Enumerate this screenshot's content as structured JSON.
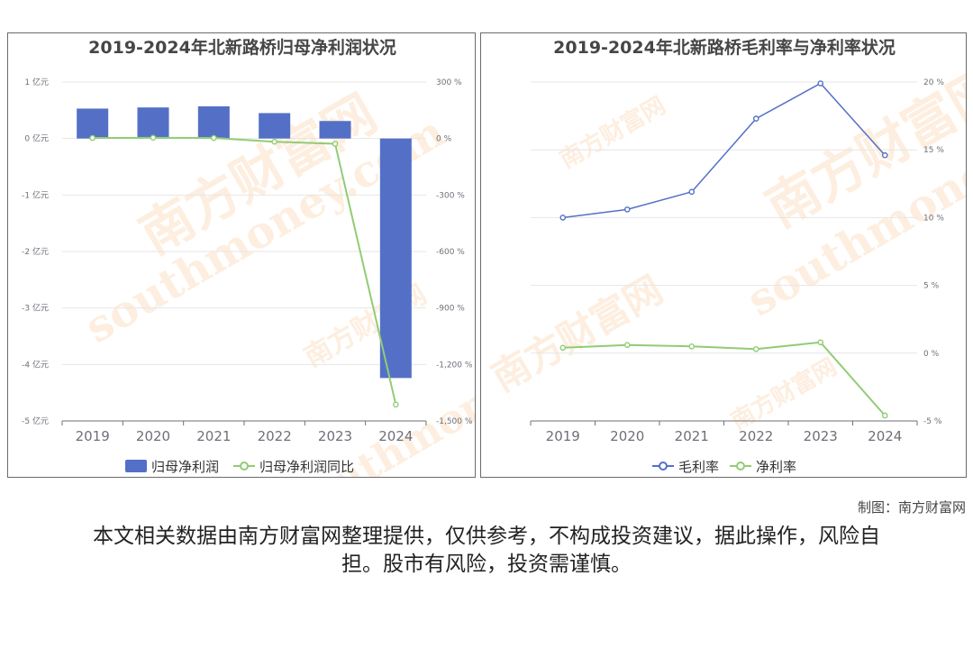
{
  "chart_data": [
    {
      "type": "bar",
      "title": "2019-2024年北新路桥归母净利润状况",
      "categories": [
        "2019",
        "2020",
        "2021",
        "2022",
        "2023",
        "2024"
      ],
      "y_left": {
        "ticks": [
          "1 亿元",
          "0 亿元",
          "-1 亿元",
          "-2 亿元",
          "-3 亿元",
          "-4 亿元",
          "-5 亿元"
        ],
        "range": [
          -5,
          1
        ]
      },
      "y_right": {
        "ticks": [
          "300 %",
          "0 %",
          "-300 %",
          "-600 %",
          "-900 %",
          "-1,200 %",
          "-1,500 %"
        ],
        "range": [
          -1500,
          300
        ]
      },
      "series": [
        {
          "name": "归母净利润",
          "type": "bar",
          "axis": "left",
          "color": "#5470c6",
          "values": [
            0.53,
            0.55,
            0.57,
            0.45,
            0.31,
            -4.24
          ]
        },
        {
          "name": "归母净利润同比",
          "type": "line",
          "axis": "right",
          "color": "#91cc75",
          "values": [
            3,
            4,
            3,
            -17,
            -28,
            -1413
          ]
        }
      ],
      "legend": "bottom-center",
      "grid": true
    },
    {
      "type": "line",
      "title": "2019-2024年北新路桥毛利率与净利率状况",
      "categories": [
        "2019",
        "2020",
        "2021",
        "2022",
        "2023",
        "2024"
      ],
      "y_right": {
        "ticks": [
          "20 %",
          "15 %",
          "10 %",
          "5 %",
          "0 %",
          "-5 %"
        ],
        "range": [
          -5,
          20
        ]
      },
      "series": [
        {
          "name": "毛利率",
          "color": "#5470c6",
          "values": [
            10.0,
            10.6,
            11.9,
            17.3,
            19.9,
            14.6
          ]
        },
        {
          "name": "净利率",
          "color": "#91cc75",
          "values": [
            0.4,
            0.6,
            0.5,
            0.3,
            0.8,
            -4.6
          ]
        }
      ],
      "legend": "bottom-center",
      "grid": true
    }
  ],
  "watermark": {
    "cn": "南方财富网",
    "en": "southmoney.com"
  },
  "footer": {
    "credit": "制图：南方财富网",
    "disclaimer": "本文相关数据由南方财富网整理提供，仅供参考，不构成投资建议，据此操作，风险自担。股市有风险，投资需谨慎。"
  }
}
